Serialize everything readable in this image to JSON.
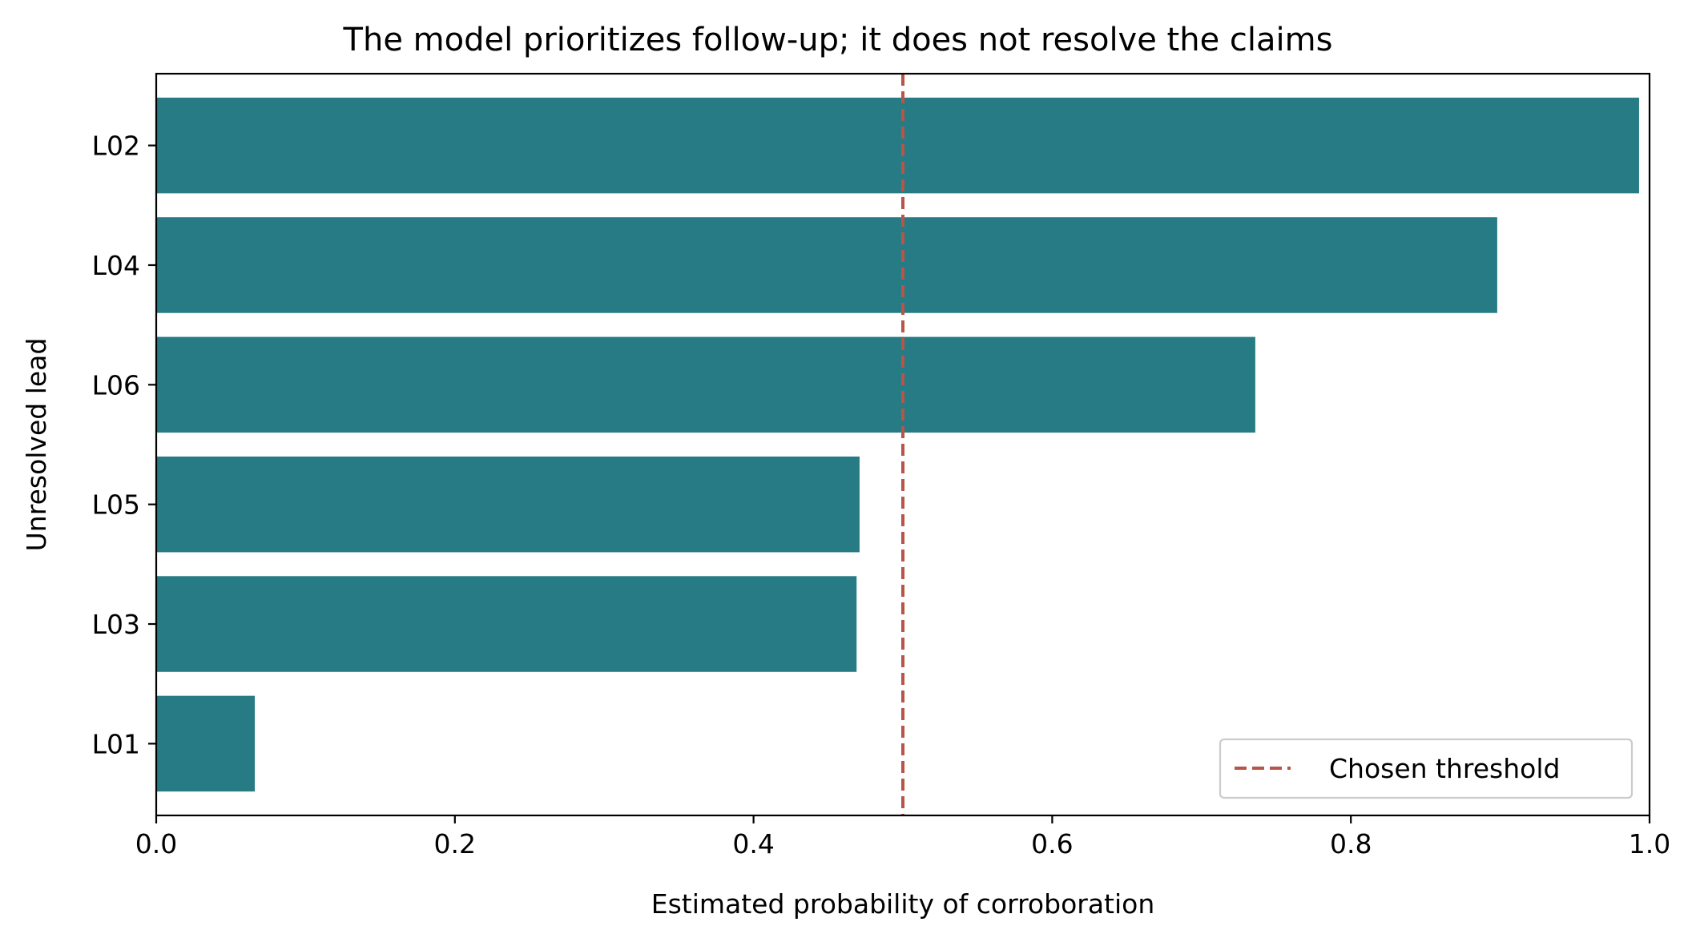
{
  "chart_data": {
    "type": "bar",
    "orientation": "horizontal",
    "title": "The model prioritizes follow-up; it does not resolve the claims",
    "xlabel": "Estimated probability of corroboration",
    "ylabel": "Unresolved lead",
    "xlim": [
      0.0,
      1.0
    ],
    "xticks": [
      "0.0",
      "0.2",
      "0.4",
      "0.6",
      "0.8",
      "1.0"
    ],
    "categories": [
      "L02",
      "L04",
      "L06",
      "L05",
      "L03",
      "L01"
    ],
    "values": [
      0.993,
      0.898,
      0.736,
      0.471,
      0.469,
      0.066
    ],
    "bar_color": "#267b85",
    "threshold": {
      "label": "Chosen threshold",
      "value": 0.5,
      "color": "#b85448",
      "style": "dashed"
    },
    "legend_position": "lower-right",
    "grid": false
  }
}
